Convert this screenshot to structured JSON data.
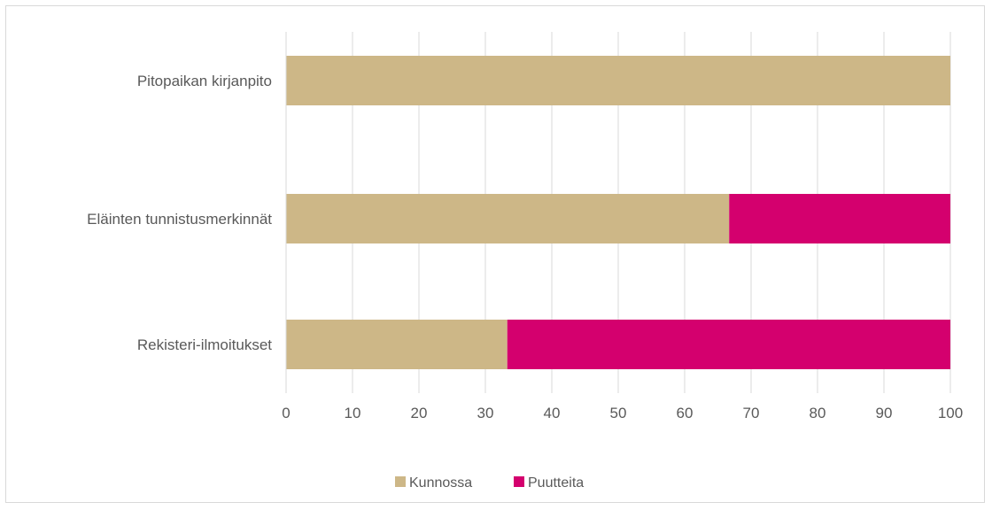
{
  "chart_data": {
    "type": "bar",
    "orientation": "horizontal",
    "stacked": true,
    "categories": [
      "Pitopaikan kirjanpito",
      "Eläinten tunnistusmerkinnät",
      "Rekisteri-ilmoitukset"
    ],
    "series": [
      {
        "name": "Kunnossa",
        "color": "#cdb787",
        "values": [
          100,
          66.7,
          33.3
        ]
      },
      {
        "name": "Puutteita",
        "color": "#d4006e",
        "values": [
          0,
          33.3,
          66.7
        ]
      }
    ],
    "xlim": [
      0,
      100
    ],
    "xticks": [
      "0",
      "10",
      "20",
      "30",
      "40",
      "50",
      "60",
      "70",
      "80",
      "90",
      "100"
    ],
    "grid": true,
    "legend_position": "bottom"
  }
}
